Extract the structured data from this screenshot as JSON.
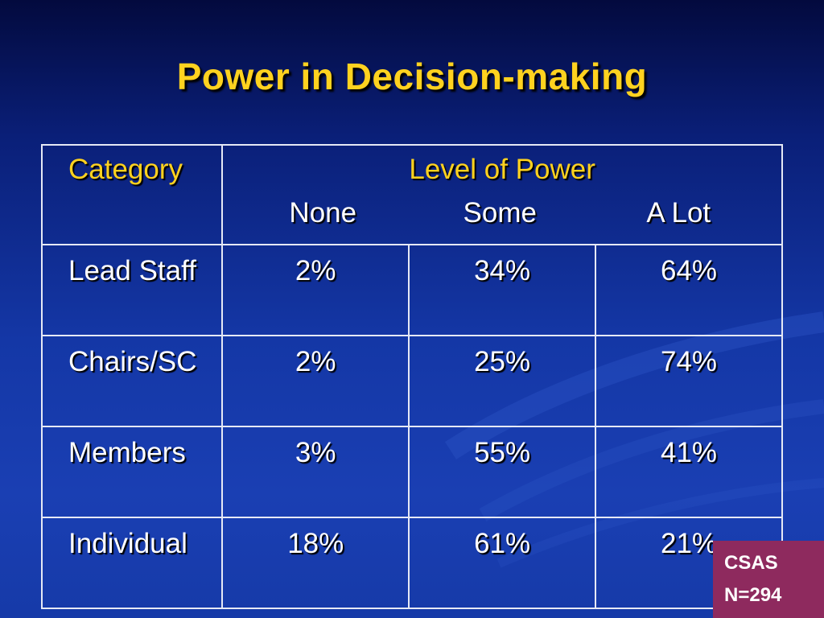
{
  "slide": {
    "title": "Power in Decision-making"
  },
  "table": {
    "category_header": "Category",
    "level_header": "Level of Power",
    "sub_headers": [
      "None",
      "Some",
      "A Lot"
    ],
    "rows": [
      {
        "label": "Lead Staff",
        "values": [
          "2%",
          "34%",
          "64%"
        ]
      },
      {
        "label": "Chairs/SC",
        "values": [
          "2%",
          "25%",
          "74%"
        ]
      },
      {
        "label": "Members",
        "values": [
          "3%",
          "55%",
          "41%"
        ]
      },
      {
        "label": "Individual",
        "values": [
          "18%",
          "61%",
          "21%"
        ]
      }
    ]
  },
  "note": {
    "line1": "CSAS",
    "line2": "N=294"
  },
  "colors": {
    "title": "#ffd21f",
    "note_background": "#8e2a5e"
  }
}
